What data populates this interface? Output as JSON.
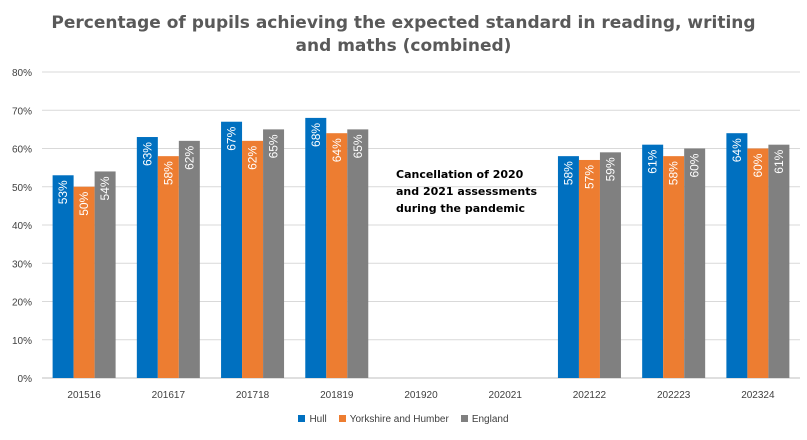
{
  "chart_data": {
    "type": "bar",
    "title": "Percentage of pupils achieving the expected standard in reading, writing and maths (combined)",
    "categories": [
      "201516",
      "201617",
      "201718",
      "201819",
      "201920",
      "202021",
      "202122",
      "202223",
      "202324"
    ],
    "series": [
      {
        "name": "Hull",
        "color": "#0070C0",
        "values": [
          53,
          63,
          67,
          68,
          null,
          null,
          58,
          61,
          64
        ]
      },
      {
        "name": "Yorkshire and Humber",
        "color": "#ED7D31",
        "values": [
          50,
          58,
          62,
          64,
          null,
          null,
          57,
          58,
          60
        ]
      },
      {
        "name": "England",
        "color": "#808080",
        "values": [
          54,
          62,
          65,
          65,
          null,
          null,
          59,
          60,
          61
        ]
      }
    ],
    "data_labels": [
      [
        "53%",
        "63%",
        "67%",
        "68%",
        "",
        "",
        "58%",
        "61%",
        "64%"
      ],
      [
        "50%",
        "58%",
        "62%",
        "64%",
        "",
        "",
        "57%",
        "58%",
        "60%"
      ],
      [
        "54%",
        "62%",
        "65%",
        "65%",
        "",
        "",
        "59%",
        "60%",
        "61%"
      ]
    ],
    "ylim": [
      0,
      80
    ],
    "y_ticks": [
      "0%",
      "10%",
      "20%",
      "30%",
      "40%",
      "50%",
      "60%",
      "70%",
      "80%"
    ],
    "grid": true,
    "legend_position": "bottom",
    "annotation": [
      "Cancellation of 2020",
      "and 2021 assessments",
      "during the pandemic"
    ]
  }
}
